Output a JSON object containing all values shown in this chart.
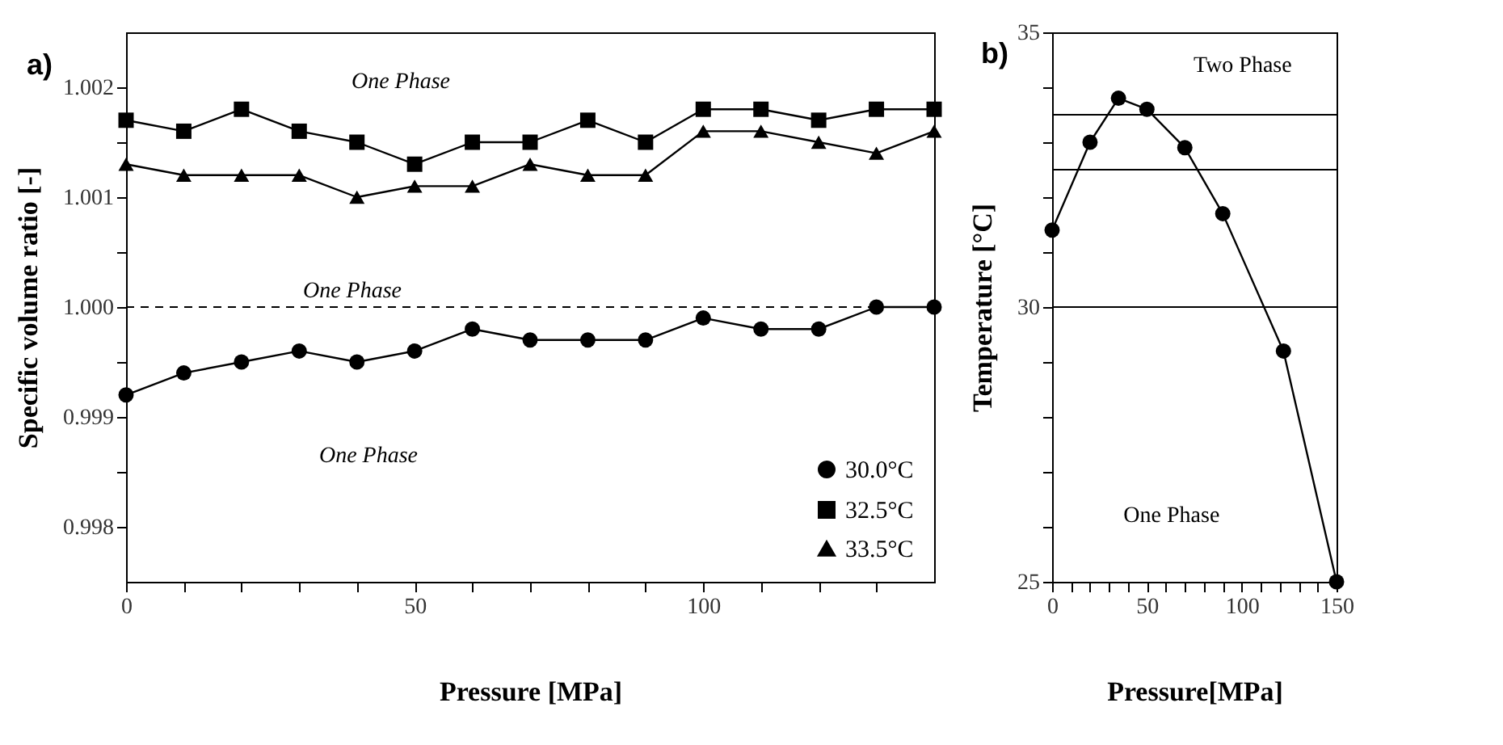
{
  "chart_data": [
    {
      "type": "line",
      "title": "a)",
      "xlabel": "Pressure [MPa]",
      "ylabel": "Specific volume ratio [-]",
      "x": [
        0,
        10,
        20,
        30,
        40,
        50,
        60,
        70,
        80,
        90,
        100,
        110,
        120,
        130,
        140
      ],
      "series": [
        {
          "name": "30.0°C",
          "color": "#000000",
          "marker": "circle",
          "values": [
            0.9992,
            0.9994,
            0.9995,
            0.9996,
            0.9995,
            0.9996,
            0.9998,
            0.9997,
            0.9997,
            0.9997,
            0.9999,
            0.9998,
            0.9998,
            1.0,
            1.0
          ]
        },
        {
          "name": "32.5°C",
          "color": "#000000",
          "marker": "square",
          "values": [
            1.0017,
            1.0016,
            1.0018,
            1.0016,
            1.0015,
            1.0013,
            1.0015,
            1.0015,
            1.0017,
            1.0015,
            1.0018,
            1.0018,
            1.0017,
            1.0018,
            1.0018
          ]
        },
        {
          "name": "33.5°C",
          "color": "#000000",
          "marker": "triangle",
          "values": [
            1.0013,
            1.0012,
            1.0012,
            1.0012,
            1.001,
            1.0011,
            1.0011,
            1.0013,
            1.0012,
            1.0012,
            1.0016,
            1.0016,
            1.0015,
            1.0014,
            1.0016
          ]
        }
      ],
      "xlim": [
        0,
        140
      ],
      "xticks": [
        0,
        {
          "value": 10,
          "label": null
        },
        {
          "value": 20,
          "label": null
        },
        {
          "value": 30,
          "label": null
        },
        {
          "value": 40,
          "label": null
        },
        50,
        {
          "value": 60,
          "label": null
        },
        {
          "value": 70,
          "label": null
        },
        {
          "value": 80,
          "label": null
        },
        {
          "value": 90,
          "label": null
        },
        100,
        {
          "value": 110,
          "label": null
        },
        {
          "value": 120,
          "label": null
        },
        {
          "value": 130,
          "label": null
        }
      ],
      "ylim": [
        0.9975,
        1.0025
      ],
      "yticks": [
        0.998,
        {
          "value": 0.9985,
          "label": null
        },
        0.999,
        {
          "value": 0.9995,
          "label": null
        },
        {
          "value": 1.0,
          "label": "1.000"
        },
        {
          "value": 1.0005,
          "label": null
        },
        1.001,
        {
          "value": 1.0015,
          "label": null
        },
        1.002
      ],
      "ref_lines": [
        {
          "axis": "y",
          "value": 1.0,
          "line_style": "dashed"
        }
      ],
      "annotations": [
        "One Phase",
        "One Phase",
        "One Phase"
      ],
      "legend": "bottom right",
      "grid": false,
      "line_style": "solid"
    },
    {
      "type": "line",
      "title": "b)",
      "xlabel": "Pressure[MPa]",
      "ylabel": "Temperature [°C]",
      "x": [
        0,
        20,
        35,
        50,
        70,
        90,
        122,
        150
      ],
      "series": [
        {
          "color": "#000000",
          "marker": "circle",
          "values": [
            31.4,
            33.0,
            33.8,
            33.6,
            32.9,
            31.7,
            29.2,
            25.0
          ]
        }
      ],
      "xlim": [
        0,
        150
      ],
      "xticks": [
        0,
        {
          "value": 10,
          "label": null
        },
        {
          "value": 20,
          "label": null
        },
        {
          "value": 30,
          "label": null
        },
        {
          "value": 40,
          "label": null
        },
        50,
        {
          "value": 60,
          "label": null
        },
        {
          "value": 70,
          "label": null
        },
        {
          "value": 80,
          "label": null
        },
        {
          "value": 90,
          "label": null
        },
        100,
        {
          "value": 110,
          "label": null
        },
        {
          "value": 120,
          "label": null
        },
        {
          "value": 130,
          "label": null
        },
        {
          "value": 140,
          "label": null
        },
        150
      ],
      "ylim": [
        25,
        35
      ],
      "yticks": [
        25,
        {
          "value": 26,
          "label": null
        },
        {
          "value": 27,
          "label": null
        },
        {
          "value": 28,
          "label": null
        },
        {
          "value": 29,
          "label": null
        },
        30,
        {
          "value": 31,
          "label": null
        },
        {
          "value": 32,
          "label": null
        },
        {
          "value": 33,
          "label": null
        },
        {
          "value": 34,
          "label": null
        },
        35
      ],
      "ref_lines": [
        {
          "axis": "y",
          "value": 30
        },
        {
          "axis": "y",
          "value": 32.5
        },
        {
          "axis": "y",
          "value": 33.5
        }
      ],
      "annotations": [
        "Two Phase",
        "One Phase"
      ],
      "grid": false,
      "line_style": "solid"
    }
  ]
}
